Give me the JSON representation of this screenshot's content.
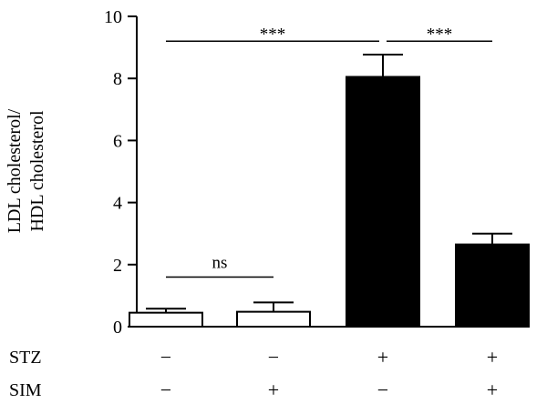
{
  "chart_data": {
    "type": "bar",
    "ylabel_lines": [
      "LDL cholesterol/",
      "HDL cholesterol"
    ],
    "ylim": [
      0,
      10
    ],
    "yticks": [
      0,
      2,
      4,
      6,
      8,
      10
    ],
    "bars": [
      {
        "value": 0.45,
        "error": 0.13,
        "fill": "#ffffff"
      },
      {
        "value": 0.48,
        "error": 0.3,
        "fill": "#ffffff"
      },
      {
        "value": 8.05,
        "error": 0.72,
        "fill": "#000000"
      },
      {
        "value": 2.65,
        "error": 0.35,
        "fill": "#000000"
      }
    ],
    "conditions": [
      {
        "label": "STZ",
        "values": [
          "−",
          "−",
          "+",
          "+"
        ]
      },
      {
        "label": "SIM",
        "values": [
          "−",
          "+",
          "−",
          "+"
        ]
      }
    ],
    "significance": [
      {
        "from": 0,
        "to": 1,
        "y": 1.6,
        "label": "ns"
      },
      {
        "from": 0,
        "to": 2,
        "y": 9.2,
        "label": "***"
      },
      {
        "from": 2,
        "to": 3,
        "y": 9.2,
        "label": "***"
      }
    ],
    "colors": {
      "axis": "#000000",
      "filled_bar": "#000000",
      "open_bar": "#ffffff"
    }
  }
}
